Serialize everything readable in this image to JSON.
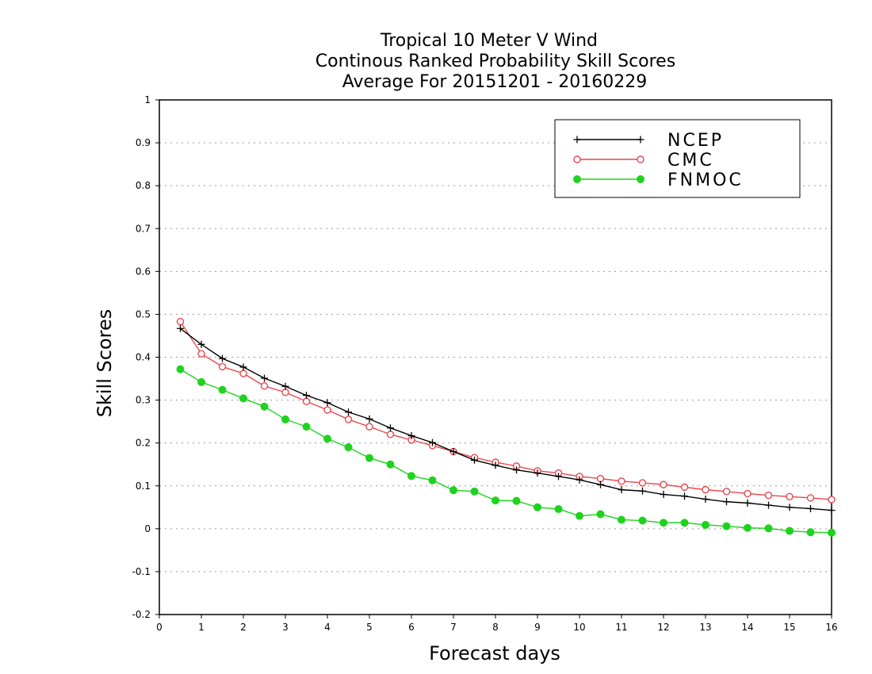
{
  "chart_data": {
    "type": "line",
    "title": [
      "Tropical 10 Meter V Wind",
      "Continous Ranked Probability Skill Scores",
      "Average For 20151201 - 20160229"
    ],
    "xlabel": "Forecast days",
    "ylabel": "Skill Scores",
    "xlim": [
      0,
      16
    ],
    "ylim": [
      -0.2,
      1
    ],
    "x_ticks": [
      "0",
      "1",
      "2",
      "3",
      "4",
      "5",
      "6",
      "7",
      "8",
      "9",
      "10",
      "11",
      "12",
      "13",
      "14",
      "15",
      "16"
    ],
    "y_ticks": [
      "-0.2",
      "-0.1",
      "0",
      "0.1",
      "0.2",
      "0.3",
      "0.4",
      "0.5",
      "0.6",
      "0.7",
      "0.8",
      "0.9",
      "1"
    ],
    "grid": "horizontal dotted",
    "legend_position": "top-right",
    "x": [
      0.5,
      1,
      1.5,
      2,
      2.5,
      3,
      3.5,
      4,
      4.5,
      5,
      5.5,
      6,
      6.5,
      7,
      7.5,
      8,
      8.5,
      9,
      9.5,
      10,
      10.5,
      11,
      11.5,
      12,
      12.5,
      13,
      13.5,
      14,
      14.5,
      15,
      15.5,
      16
    ],
    "series": [
      {
        "name": "NCEP",
        "color": "#000000",
        "marker": "plus",
        "values": [
          0.467,
          0.43,
          0.397,
          0.377,
          0.351,
          0.332,
          0.311,
          0.294,
          0.272,
          0.256,
          0.235,
          0.217,
          0.201,
          0.18,
          0.16,
          0.148,
          0.137,
          0.13,
          0.122,
          0.114,
          0.103,
          0.091,
          0.088,
          0.08,
          0.076,
          0.069,
          0.063,
          0.06,
          0.055,
          0.05,
          0.047,
          0.043
        ]
      },
      {
        "name": "CMC",
        "color": "#e8474c",
        "marker": "open-circle",
        "values": [
          0.483,
          0.408,
          0.378,
          0.362,
          0.333,
          0.318,
          0.297,
          0.277,
          0.255,
          0.238,
          0.22,
          0.207,
          0.194,
          0.18,
          0.166,
          0.155,
          0.146,
          0.135,
          0.13,
          0.122,
          0.117,
          0.111,
          0.107,
          0.103,
          0.097,
          0.091,
          0.087,
          0.082,
          0.078,
          0.075,
          0.072,
          0.068
        ]
      },
      {
        "name": "FNMOC",
        "color": "#1ed31e",
        "marker": "filled-circle",
        "values": [
          0.372,
          0.342,
          0.324,
          0.304,
          0.285,
          0.255,
          0.238,
          0.21,
          0.19,
          0.165,
          0.15,
          0.123,
          0.113,
          0.09,
          0.087,
          0.066,
          0.065,
          0.05,
          0.046,
          0.03,
          0.034,
          0.021,
          0.019,
          0.014,
          0.014,
          0.009,
          0.006,
          0.002,
          0.001,
          -0.005,
          -0.008,
          -0.009
        ]
      }
    ]
  }
}
